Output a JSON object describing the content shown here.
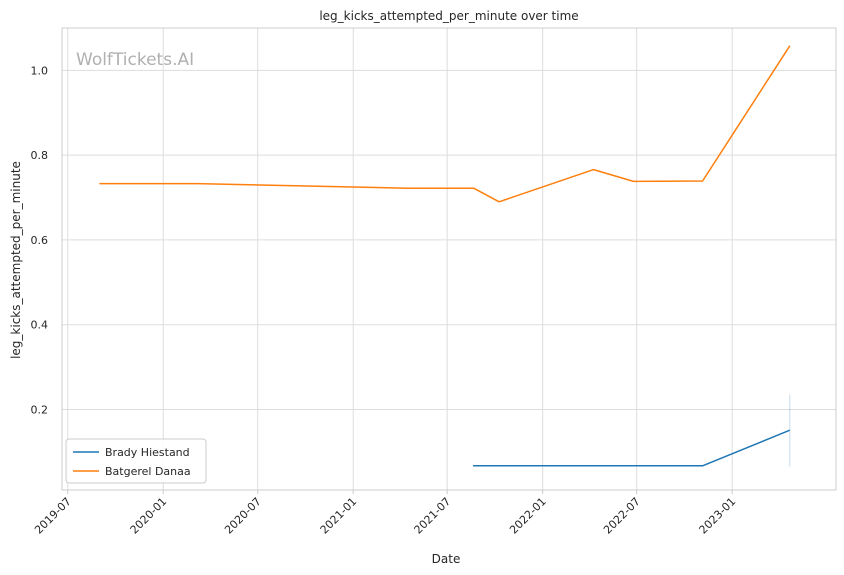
{
  "chart_data": {
    "type": "line",
    "title": "leg_kicks_attempted_per_minute over time",
    "xlabel": "Date",
    "ylabel": "leg_kicks_attempted_per_minute",
    "watermark": "WolfTickets.AI",
    "xlim": [
      "2019-06-20",
      "2023-07-20"
    ],
    "ylim": [
      0.01,
      1.1
    ],
    "x_ticks": [
      "2019-07",
      "2020-01",
      "2020-07",
      "2021-01",
      "2021-07",
      "2022-01",
      "2022-07",
      "2023-01"
    ],
    "y_ticks": [
      0.2,
      0.4,
      0.6,
      0.8,
      1.0
    ],
    "y_tick_labels": [
      "0.2",
      "0.4",
      "0.6",
      "0.8",
      "1.0"
    ],
    "grid": true,
    "legend_position": "bottom-left",
    "series": [
      {
        "name": "Brady Hiestand",
        "color": "#1f77b4",
        "points": [
          {
            "x": "2021-08-20",
            "y": 0.067
          },
          {
            "x": "2022-11-05",
            "y": 0.067
          },
          {
            "x": "2023-04-22",
            "y": 0.151
          }
        ],
        "error_bar": {
          "x": "2023-04-22",
          "low": 0.065,
          "high": 0.235
        }
      },
      {
        "name": "Batgerel Danaa",
        "color": "#ff7f0e",
        "points": [
          {
            "x": "2019-08-31",
            "y": 0.733
          },
          {
            "x": "2020-03-07",
            "y": 0.733
          },
          {
            "x": "2021-04-17",
            "y": 0.722
          },
          {
            "x": "2021-08-21",
            "y": 0.722
          },
          {
            "x": "2021-10-09",
            "y": 0.69
          },
          {
            "x": "2022-04-09",
            "y": 0.766
          },
          {
            "x": "2022-06-25",
            "y": 0.738
          },
          {
            "x": "2022-11-05",
            "y": 0.739
          },
          {
            "x": "2023-04-22",
            "y": 1.058
          }
        ]
      }
    ]
  }
}
